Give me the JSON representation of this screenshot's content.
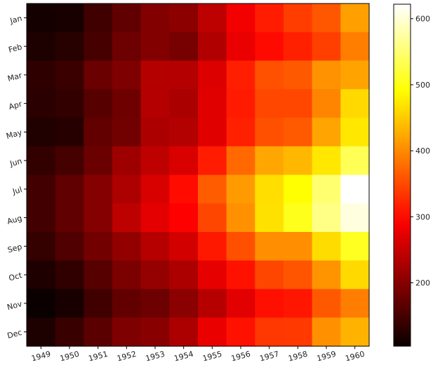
{
  "chart_data": {
    "type": "heatmap",
    "title": "",
    "xlabel": "",
    "ylabel": "",
    "x": [
      "1949",
      "1950",
      "1951",
      "1952",
      "1953",
      "1954",
      "1955",
      "1956",
      "1957",
      "1958",
      "1959",
      "1960"
    ],
    "y": [
      "Jan",
      "Feb",
      "Mar",
      "Apr",
      "May",
      "Jun",
      "Jul",
      "Aug",
      "Sep",
      "Oct",
      "Nov",
      "Dec"
    ],
    "values": [
      [
        112,
        115,
        145,
        171,
        196,
        204,
        242,
        284,
        315,
        340,
        360,
        417
      ],
      [
        118,
        126,
        150,
        180,
        196,
        188,
        233,
        277,
        301,
        318,
        342,
        391
      ],
      [
        132,
        141,
        178,
        193,
        236,
        235,
        267,
        317,
        356,
        362,
        406,
        419
      ],
      [
        129,
        135,
        163,
        181,
        235,
        227,
        269,
        313,
        348,
        348,
        396,
        461
      ],
      [
        121,
        125,
        172,
        183,
        229,
        234,
        270,
        318,
        355,
        363,
        420,
        472
      ],
      [
        135,
        149,
        178,
        218,
        243,
        264,
        315,
        374,
        422,
        435,
        472,
        535
      ],
      [
        148,
        170,
        199,
        230,
        264,
        302,
        364,
        413,
        465,
        491,
        548,
        622
      ],
      [
        148,
        170,
        199,
        242,
        272,
        293,
        347,
        405,
        467,
        505,
        559,
        606
      ],
      [
        136,
        158,
        184,
        209,
        237,
        259,
        312,
        355,
        404,
        404,
        463,
        508
      ],
      [
        119,
        133,
        162,
        191,
        211,
        229,
        274,
        306,
        347,
        359,
        407,
        461
      ],
      [
        104,
        114,
        146,
        172,
        180,
        203,
        237,
        271,
        305,
        310,
        362,
        390
      ],
      [
        118,
        140,
        166,
        194,
        201,
        229,
        278,
        306,
        336,
        337,
        405,
        432
      ]
    ],
    "colormap": "hot",
    "vmin": 104,
    "vmax": 622,
    "colorbar": {
      "ticks": [
        200,
        300,
        400,
        500,
        600
      ],
      "tick_labels": [
        "200",
        "300",
        "400",
        "500",
        "600"
      ]
    },
    "x_tick_rotation": 15,
    "y_tick_rotation": 15,
    "grid": false,
    "legend": "none"
  }
}
